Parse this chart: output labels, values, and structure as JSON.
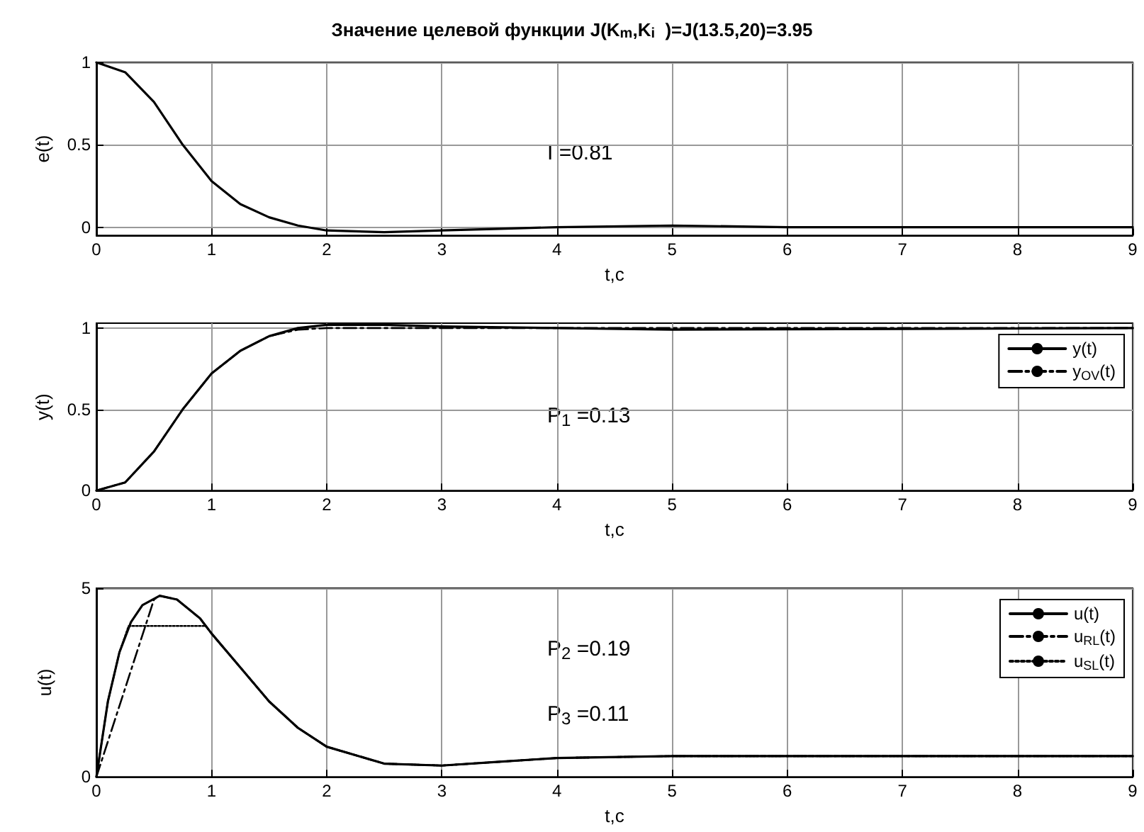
{
  "chart_data": [
    {
      "type": "line",
      "title": "Значение целевой функции J(K$_{m}$,K$_{i}$  )=J(13.5,20)=3.95",
      "xlabel": "t,c",
      "ylabel": "e(t)",
      "xlim": [
        0,
        9
      ],
      "xticks": [
        0,
        1,
        2,
        3,
        4,
        5,
        6,
        7,
        8,
        9
      ],
      "ylim": [
        -0.05,
        1
      ],
      "yticks": [
        0,
        0.5,
        1
      ],
      "grid": true,
      "legend": false,
      "annotations": [
        "I =0.81"
      ],
      "series": [
        {
          "color": "#000000",
          "line_style": "solid",
          "x": [
            0,
            0.25,
            0.5,
            0.75,
            1,
            1.25,
            1.5,
            1.75,
            2,
            2.5,
            3,
            3.5,
            4,
            5,
            6,
            9
          ],
          "values": [
            1,
            0.94,
            0.76,
            0.5,
            0.28,
            0.14,
            0.06,
            0.01,
            -0.02,
            -0.03,
            -0.02,
            -0.01,
            0,
            0.01,
            0,
            0
          ]
        }
      ]
    },
    {
      "type": "line",
      "xlabel": "t,c",
      "ylabel": "y(t)",
      "xlim": [
        0,
        9
      ],
      "xticks": [
        0,
        1,
        2,
        3,
        4,
        5,
        6,
        7,
        8,
        9
      ],
      "ylim": [
        0,
        1.03
      ],
      "yticks": [
        0,
        0.5,
        1
      ],
      "grid": true,
      "legend": "top right",
      "annotations": [
        "P$_{1}$ =0.13"
      ],
      "series": [
        {
          "name": "y(t)",
          "color": "#000000",
          "line_style": "solid",
          "x": [
            0,
            0.25,
            0.5,
            0.75,
            1,
            1.25,
            1.5,
            1.75,
            2,
            2.5,
            3,
            4,
            5,
            9
          ],
          "values": [
            0,
            0.05,
            0.24,
            0.5,
            0.72,
            0.86,
            0.95,
            1,
            1.02,
            1.02,
            1.01,
            1,
            0.99,
            1
          ]
        },
        {
          "name": "y$_{OV}$(t)",
          "color": "#000000",
          "line_style": "dashdot",
          "x": [
            0,
            0.25,
            0.5,
            0.75,
            1,
            1.25,
            1.5,
            1.75,
            2,
            9
          ],
          "values": [
            0,
            0.05,
            0.24,
            0.5,
            0.72,
            0.86,
            0.95,
            0.99,
            1,
            1
          ]
        }
      ]
    },
    {
      "type": "line",
      "xlabel": "t,c",
      "ylabel": "u(t)",
      "xlim": [
        0,
        9
      ],
      "xticks": [
        0,
        1,
        2,
        3,
        4,
        5,
        6,
        7,
        8,
        9
      ],
      "ylim": [
        0,
        5
      ],
      "yticks": [
        0,
        5
      ],
      "grid": true,
      "legend": "top right",
      "annotations": [
        "P$_{2}$ =0.19",
        "P$_{3}$ =0.11"
      ],
      "series": [
        {
          "name": "u(t)",
          "color": "#000000",
          "line_style": "solid",
          "x": [
            0,
            0.1,
            0.2,
            0.3,
            0.4,
            0.55,
            0.7,
            0.9,
            1,
            1.25,
            1.5,
            1.75,
            2,
            2.5,
            3,
            3.5,
            4,
            5,
            6,
            9
          ],
          "values": [
            0,
            2,
            3.3,
            4.1,
            4.55,
            4.8,
            4.7,
            4.2,
            3.8,
            2.9,
            2,
            1.3,
            0.8,
            0.35,
            0.3,
            0.4,
            0.5,
            0.55,
            0.55,
            0.55
          ]
        },
        {
          "name": "u$_{RL}$(t)",
          "color": "#000000",
          "line_style": "dashdot",
          "x": [
            0,
            0.5,
            0.55,
            0.7,
            0.9,
            1,
            1.25,
            1.5,
            1.75,
            2,
            2.5,
            3,
            3.5,
            4,
            5,
            6,
            9
          ],
          "values": [
            0,
            4.7,
            4.8,
            4.7,
            4.2,
            3.8,
            2.9,
            2,
            1.3,
            0.8,
            0.35,
            0.3,
            0.4,
            0.5,
            0.55,
            0.55,
            0.55
          ]
        },
        {
          "name": "u$_{SL}$(t)",
          "color": "#000000",
          "line_style": "dotted",
          "x": [
            0,
            0.1,
            0.2,
            0.28,
            0.95,
            1,
            1.25,
            1.5,
            1.75,
            2,
            2.5,
            3,
            3.5,
            4,
            5,
            6,
            9
          ],
          "values": [
            0,
            2,
            3.3,
            4,
            4,
            3.8,
            2.9,
            2,
            1.3,
            0.8,
            0.35,
            0.3,
            0.4,
            0.5,
            0.55,
            0.55,
            0.55
          ]
        }
      ]
    }
  ]
}
